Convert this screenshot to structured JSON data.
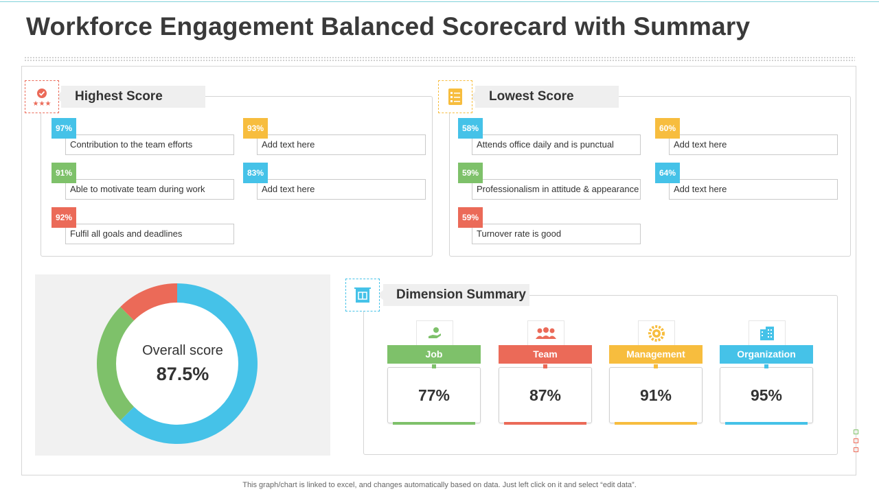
{
  "title": "Workforce Engagement Balanced Scorecard with Summary",
  "colors": {
    "blue": "#45c2e8",
    "green": "#7ec16a",
    "red": "#eb6a58",
    "yellow": "#f7bd3e"
  },
  "highest": {
    "title": "Highest Score",
    "icon": "award-stars-icon",
    "items": [
      {
        "pct": "97%",
        "text": "Contribution  to the team efforts",
        "color": "#45c2e8"
      },
      {
        "pct": "91%",
        "text": "Able to motivate  team during work",
        "color": "#7ec16a"
      },
      {
        "pct": "92%",
        "text": "Fulfil all goals and deadlines",
        "color": "#eb6a58"
      },
      {
        "pct": "93%",
        "text": "Add text here",
        "color": "#f7bd3e"
      },
      {
        "pct": "83%",
        "text": "Add text here",
        "color": "#45c2e8"
      }
    ]
  },
  "lowest": {
    "title": "Lowest Score",
    "icon": "checklist-icon",
    "items": [
      {
        "pct": "58%",
        "text": "Attends office  daily and is punctual",
        "color": "#45c2e8"
      },
      {
        "pct": "59%",
        "text": "Professionalism in attitude & appearance",
        "color": "#7ec16a"
      },
      {
        "pct": "59%",
        "text": "Turnover   rate is good",
        "color": "#eb6a58"
      },
      {
        "pct": "60%",
        "text": "Add text here",
        "color": "#f7bd3e"
      },
      {
        "pct": "64%",
        "text": "Add text here",
        "color": "#45c2e8"
      }
    ]
  },
  "overall": {
    "label": "Overall score",
    "value": "87.5%",
    "fraction": 0.875
  },
  "chart_data": {
    "type": "pie",
    "categories": [
      "Overall score",
      "",
      ""
    ],
    "values": [
      62.5,
      25,
      12.5
    ],
    "colors": [
      "#45c2e8",
      "#7ec16a",
      "#eb6a58"
    ],
    "title": "Overall score",
    "center_value": "87.5%"
  },
  "dimension": {
    "title": "Dimension Summary",
    "icon": "clipboard-icon",
    "cards": [
      {
        "name": "Job",
        "value": "77%",
        "color": "#7ec16a",
        "icon": "hand-gear-icon"
      },
      {
        "name": "Team",
        "value": "87%",
        "color": "#eb6a58",
        "icon": "people-icon"
      },
      {
        "name": "Management",
        "value": "91%",
        "color": "#f7bd3e",
        "icon": "gear-badge-icon"
      },
      {
        "name": "Organization",
        "value": "95%",
        "color": "#45c2e8",
        "icon": "building-icon"
      }
    ]
  },
  "footnote": "This graph/chart is linked to excel,  and changes automatically based on data. Just left click on it and select “edit data”."
}
